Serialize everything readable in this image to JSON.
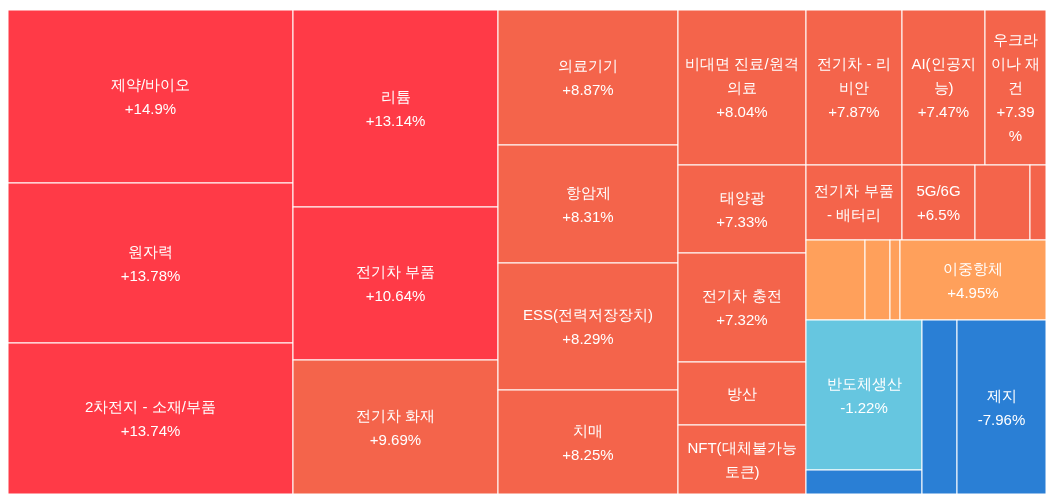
{
  "chart_data": {
    "type": "other",
    "categories": [
      "제약/바이오",
      "원자력",
      "2차전지 - 소재/부품",
      "리튬",
      "전기차 부품",
      "전기차 화재",
      "의료기기",
      "항암제",
      "ESS(전력저장장치)",
      "치매",
      "비대면 진료/원격의료",
      "태양광",
      "전기차 충전",
      "방산",
      "NFT(대체불가능토큰)",
      "전기차 - 리비안",
      "AI(인공지능)",
      "우크라이나 재건",
      "전기차 부품 - 배터리",
      "5G/6G",
      null,
      null,
      null,
      null,
      null,
      "이중항체",
      "반도체생산",
      null,
      null,
      "제지"
    ],
    "values": [
      14.9,
      13.78,
      13.74,
      13.14,
      10.64,
      9.69,
      8.87,
      8.31,
      8.29,
      8.25,
      8.04,
      7.33,
      7.32,
      null,
      null,
      7.87,
      7.47,
      7.39,
      null,
      6.5,
      null,
      null,
      null,
      null,
      null,
      4.95,
      -1.22,
      null,
      null,
      -7.96
    ],
    "value_labels": [
      "+14.9%",
      "+13.78%",
      "+13.74%",
      "+13.14%",
      "+10.64%",
      "+9.69%",
      "+8.87%",
      "+8.31%",
      "+8.29%",
      "+8.25%",
      "+8.04%",
      "+7.33%",
      "+7.32%",
      null,
      null,
      "+7.87%",
      "+7.47%",
      "+7.39%",
      null,
      "+6.5%",
      null,
      null,
      null,
      null,
      null,
      "+4.95%",
      "-1.22%",
      null,
      null,
      "-7.96%"
    ],
    "colors": [
      "#ff3a47",
      "#ff3a47",
      "#ff3a47",
      "#ff3a47",
      "#ff3a47",
      "#f4644b",
      "#f4644b",
      "#f4644b",
      "#f4644b",
      "#f4644b",
      "#f4644b",
      "#f4644b",
      "#f4644b",
      "#f4644b",
      "#f4644b",
      "#f4644b",
      "#f4644b",
      "#f4644b",
      "#f4644b",
      "#f4644b",
      "#f4644b",
      "#f4644b",
      "#ffa05b",
      "#ffa05b",
      "#ffa05b",
      "#ffa05b",
      "#66c6e0",
      "#2a7fd5",
      "#2a7fd5",
      "#2a7fd5"
    ]
  }
}
